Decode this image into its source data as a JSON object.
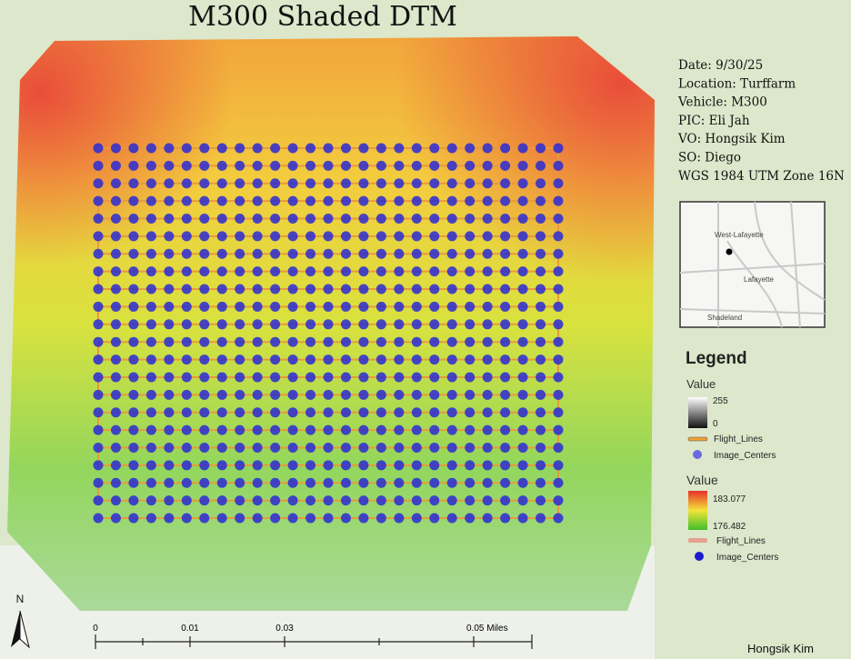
{
  "title": "M300 Shaded DTM",
  "info": [
    "Date: 9/30/25",
    "Location: Turffarm",
    "Vehicle: M300",
    "PIC: Eli Jah",
    "VO: Hongsik Kim",
    "SO: Diego",
    "WGS 1984 UTM Zone 16N"
  ],
  "inset_map": {
    "labels": [
      "West-Lafayette",
      "Lafayette",
      "Shadeland"
    ]
  },
  "legend": {
    "title": "Legend",
    "group1": {
      "heading": "Value",
      "high": "255",
      "low": "0",
      "items": [
        "Flight_Lines",
        "Image_Centers"
      ]
    },
    "group2": {
      "heading": "Value",
      "high": "183.077",
      "low": "176.482",
      "items": [
        "Flight_Lines",
        "Image_Centers"
      ]
    }
  },
  "scale_bar": {
    "labels": [
      "0",
      "0.01",
      "0.03",
      "0.05 Miles"
    ]
  },
  "north_arrow": "N",
  "author": "Hongsik Kim"
}
